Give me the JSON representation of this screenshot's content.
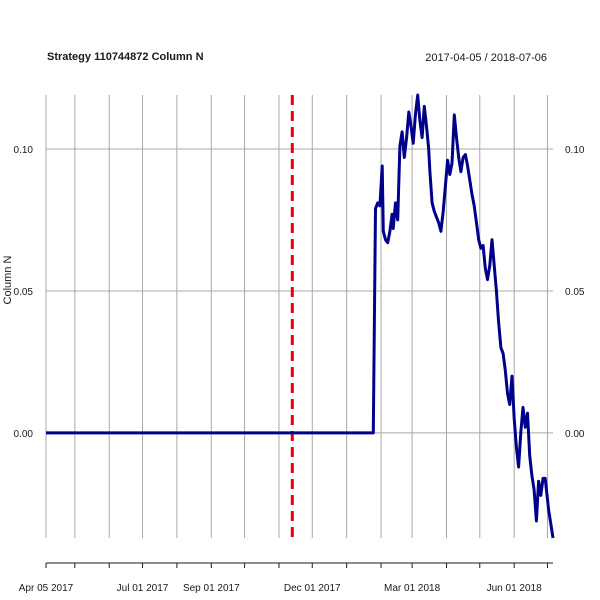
{
  "chart_data": {
    "type": "line",
    "title": "Strategy 110744872 Column N",
    "date_range": "2017-04-05 / 2018-07-06",
    "ylabel": "Column N",
    "xlabel": "",
    "ylim": [
      -0.037,
      0.119
    ],
    "xlim": [
      "2017-04-05",
      "2018-07-06"
    ],
    "y_ticks": [
      {
        "value": 0.0,
        "label": "0.00"
      },
      {
        "value": 0.05,
        "label": "0.05"
      },
      {
        "value": 0.1,
        "label": "0.10"
      }
    ],
    "x_tick_labels": [
      {
        "date": "2017-04-05",
        "label": "Apr 05 2017"
      },
      {
        "date": "2017-07-01",
        "label": "Jul 01 2017"
      },
      {
        "date": "2017-09-01",
        "label": "Sep 01 2017"
      },
      {
        "date": "2017-12-01",
        "label": "Dec 01 2017"
      },
      {
        "date": "2018-03-01",
        "label": "Mar 01 2018"
      },
      {
        "date": "2018-06-01",
        "label": "Jun 01 2018"
      }
    ],
    "x_gridlines": [
      "2017-04-05",
      "2017-05-01",
      "2017-06-01",
      "2017-07-01",
      "2017-08-01",
      "2017-09-01",
      "2017-10-01",
      "2017-11-01",
      "2017-12-01",
      "2018-01-01",
      "2018-02-01",
      "2018-03-01",
      "2018-04-01",
      "2018-05-01",
      "2018-06-01",
      "2018-07-01"
    ],
    "grid": true,
    "marker_line": {
      "date": "2017-11-13",
      "style": "dashed",
      "color": "#e8000b"
    },
    "series": [
      {
        "color": "#00008b",
        "points": [
          [
            "2017-04-05",
            0.0
          ],
          [
            "2017-06-01",
            0.0
          ],
          [
            "2017-08-01",
            0.0
          ],
          [
            "2017-10-01",
            0.0
          ],
          [
            "2017-11-13",
            0.0
          ],
          [
            "2018-01-01",
            0.0
          ],
          [
            "2018-01-25",
            0.0
          ],
          [
            "2018-01-26",
            0.04
          ],
          [
            "2018-01-27",
            0.079
          ],
          [
            "2018-01-29",
            0.081
          ],
          [
            "2018-01-31",
            0.08
          ],
          [
            "2018-02-02",
            0.094
          ],
          [
            "2018-02-03",
            0.071
          ],
          [
            "2018-02-05",
            0.068
          ],
          [
            "2018-02-07",
            0.067
          ],
          [
            "2018-02-09",
            0.071
          ],
          [
            "2018-02-11",
            0.077
          ],
          [
            "2018-02-12",
            0.072
          ],
          [
            "2018-02-14",
            0.081
          ],
          [
            "2018-02-16",
            0.075
          ],
          [
            "2018-02-18",
            0.101
          ],
          [
            "2018-02-20",
            0.106
          ],
          [
            "2018-02-22",
            0.097
          ],
          [
            "2018-02-24",
            0.104
          ],
          [
            "2018-02-26",
            0.113
          ],
          [
            "2018-02-28",
            0.108
          ],
          [
            "2018-03-02",
            0.102
          ],
          [
            "2018-03-04",
            0.112
          ],
          [
            "2018-03-06",
            0.119
          ],
          [
            "2018-03-08",
            0.11
          ],
          [
            "2018-03-10",
            0.104
          ],
          [
            "2018-03-12",
            0.115
          ],
          [
            "2018-03-14",
            0.108
          ],
          [
            "2018-03-16",
            0.1
          ],
          [
            "2018-03-17",
            0.092
          ],
          [
            "2018-03-19",
            0.081
          ],
          [
            "2018-03-21",
            0.078
          ],
          [
            "2018-03-23",
            0.076
          ],
          [
            "2018-03-25",
            0.074
          ],
          [
            "2018-03-27",
            0.071
          ],
          [
            "2018-03-29",
            0.078
          ],
          [
            "2018-03-31",
            0.087
          ],
          [
            "2018-04-02",
            0.096
          ],
          [
            "2018-04-04",
            0.091
          ],
          [
            "2018-04-06",
            0.095
          ],
          [
            "2018-04-08",
            0.112
          ],
          [
            "2018-04-10",
            0.104
          ],
          [
            "2018-04-12",
            0.097
          ],
          [
            "2018-04-14",
            0.092
          ],
          [
            "2018-04-16",
            0.097
          ],
          [
            "2018-04-18",
            0.098
          ],
          [
            "2018-04-20",
            0.094
          ],
          [
            "2018-04-22",
            0.089
          ],
          [
            "2018-04-24",
            0.084
          ],
          [
            "2018-04-26",
            0.08
          ],
          [
            "2018-04-28",
            0.074
          ],
          [
            "2018-04-30",
            0.068
          ],
          [
            "2018-05-02",
            0.065
          ],
          [
            "2018-05-04",
            0.066
          ],
          [
            "2018-05-06",
            0.058
          ],
          [
            "2018-05-08",
            0.054
          ],
          [
            "2018-05-10",
            0.059
          ],
          [
            "2018-05-12",
            0.068
          ],
          [
            "2018-05-14",
            0.059
          ],
          [
            "2018-05-16",
            0.05
          ],
          [
            "2018-05-18",
            0.039
          ],
          [
            "2018-05-20",
            0.03
          ],
          [
            "2018-05-22",
            0.028
          ],
          [
            "2018-05-24",
            0.022
          ],
          [
            "2018-05-26",
            0.014
          ],
          [
            "2018-05-28",
            0.01
          ],
          [
            "2018-05-30",
            0.02
          ],
          [
            "2018-06-01",
            0.005
          ],
          [
            "2018-06-03",
            -0.005
          ],
          [
            "2018-06-05",
            -0.012
          ],
          [
            "2018-06-07",
            0.0
          ],
          [
            "2018-06-09",
            0.009
          ],
          [
            "2018-06-11",
            0.002
          ],
          [
            "2018-06-13",
            0.007
          ],
          [
            "2018-06-15",
            -0.008
          ],
          [
            "2018-06-17",
            -0.015
          ],
          [
            "2018-06-19",
            -0.02
          ],
          [
            "2018-06-21",
            -0.031
          ],
          [
            "2018-06-23",
            -0.017
          ],
          [
            "2018-06-25",
            -0.022
          ],
          [
            "2018-06-27",
            -0.016
          ],
          [
            "2018-06-29",
            -0.016
          ],
          [
            "2018-07-02",
            -0.027
          ],
          [
            "2018-07-06",
            -0.037
          ]
        ]
      }
    ]
  }
}
